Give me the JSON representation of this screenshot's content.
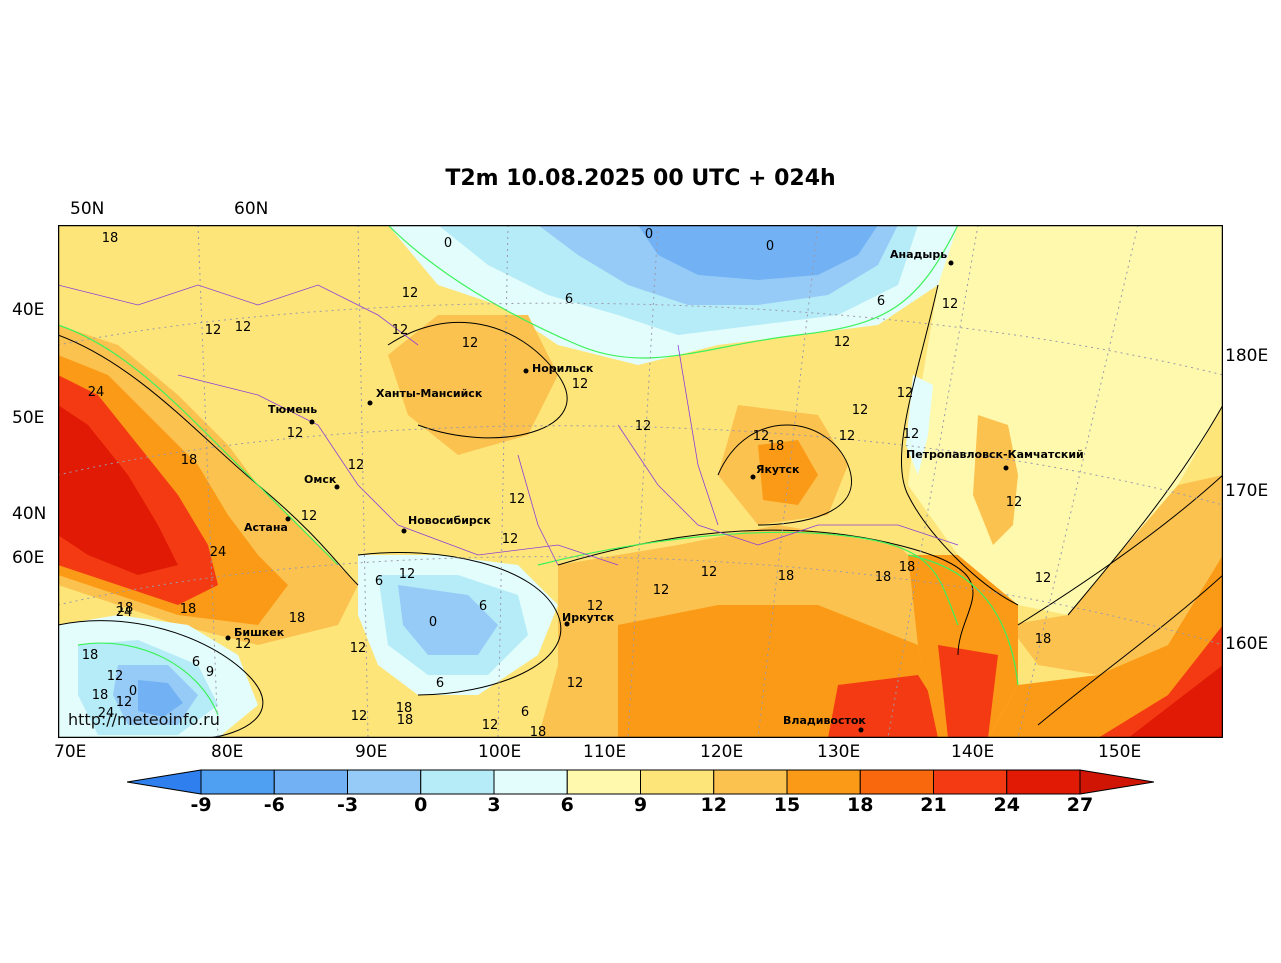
{
  "title": "T2m 10.08.2025 00 UTC + 024h",
  "credit": "http://meteoinfo.ru",
  "axes": {
    "top": [
      "50N",
      "60N"
    ],
    "left": [
      "40E",
      "50E",
      "40N",
      "60E"
    ],
    "right": [
      "180E",
      "170E",
      "160E"
    ],
    "bottom": [
      "70E",
      "80E",
      "90E",
      "100E",
      "110E",
      "120E",
      "130E",
      "140E",
      "150E"
    ]
  },
  "colorbar": {
    "ticks": [
      "-9",
      "-6",
      "-3",
      "0",
      "3",
      "6",
      "9",
      "12",
      "15",
      "18",
      "21",
      "24",
      "27"
    ],
    "colors": [
      "#3a8ff2",
      "#4f9ff2",
      "#72b2f4",
      "#96cbf7",
      "#b6ecf8",
      "#e2fdfb",
      "#fff9ae",
      "#fde57a",
      "#fcc24f",
      "#fb9a16",
      "#f9680d",
      "#f43a12",
      "#e11a05"
    ],
    "under_color": "#2f80ee",
    "over_color": "#d01504"
  },
  "cities": [
    "Анадырь",
    "Норильск",
    "Ханты-Мансийск",
    "Тюмень",
    "Якутск",
    "Петропавловск-Камчатский",
    "Омск",
    "Астана",
    "Новосибирск",
    "Иркутск",
    "Бишкек",
    "Владивосток"
  ],
  "contour_labels": [
    "18",
    "0",
    "0",
    "0",
    "6",
    "12",
    "12",
    "12",
    "12",
    "12",
    "12",
    "24",
    "12",
    "12",
    "12",
    "18",
    "12",
    "12",
    "12",
    "12",
    "12",
    "18",
    "12",
    "12",
    "12",
    "24",
    "18",
    "6",
    "12",
    "12",
    "24",
    "18",
    "18",
    "6",
    "0",
    "12",
    "12",
    "18",
    "18",
    "18",
    "12",
    "12",
    "12",
    "18",
    "18",
    "12",
    "6",
    "9",
    "12",
    "0",
    "18",
    "12",
    "24",
    "6",
    "12",
    "18",
    "18",
    "12",
    "6",
    "12",
    "18",
    "6",
    "12",
    "12"
  ]
}
